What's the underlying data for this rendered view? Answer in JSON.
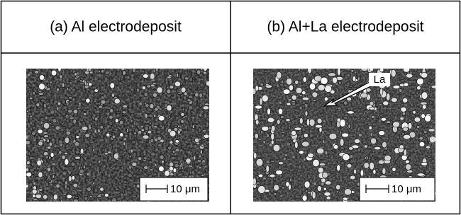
{
  "table": {
    "headers": [
      "(a) Al electrodeposit",
      "(b) Al+La electrodeposit"
    ],
    "panels": [
      {
        "scale_bar": "10 μm"
      },
      {
        "scale_bar": "10 μm",
        "annotation": "La"
      }
    ]
  }
}
